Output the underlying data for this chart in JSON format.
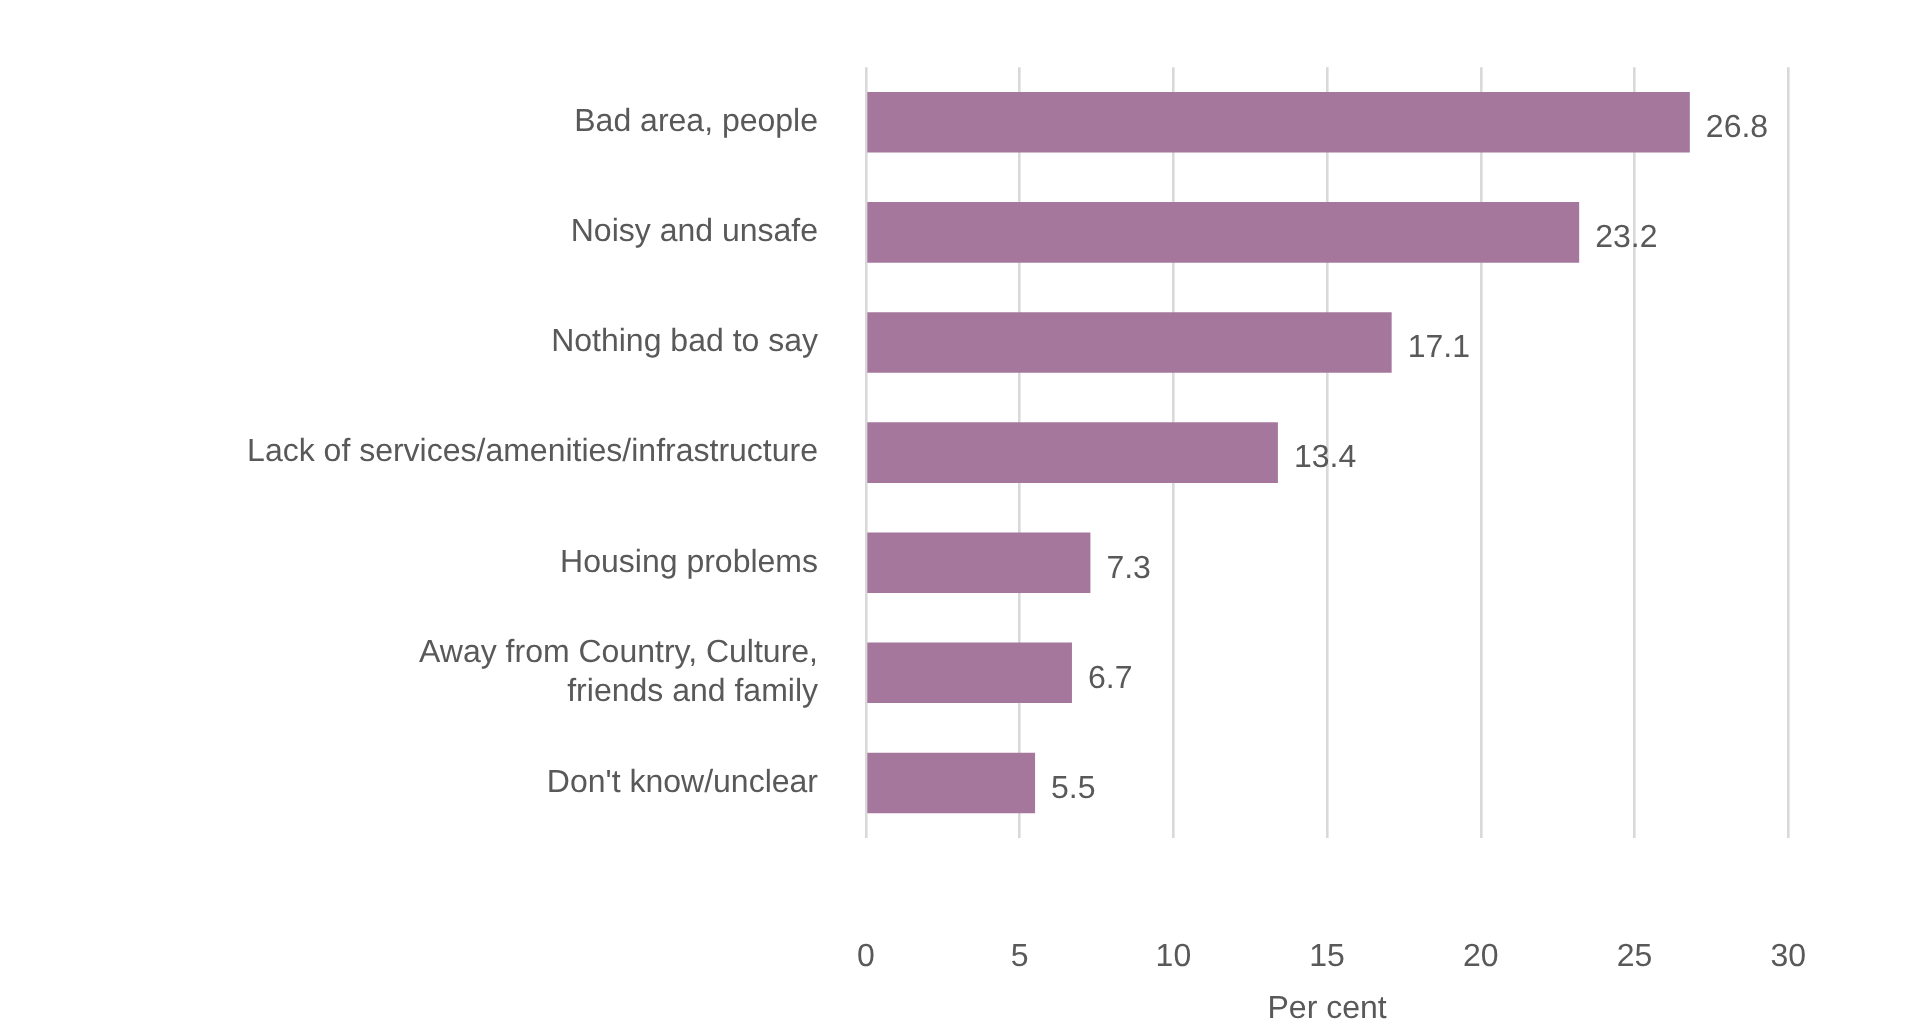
{
  "chart_data": {
    "type": "bar",
    "orientation": "horizontal",
    "categories": [
      "Bad area, people",
      "Noisy and unsafe",
      "Nothing bad to say",
      "Lack of services/amenities/infrastructure",
      "Housing problems",
      "Away from Country, Culture,\nfriends and family",
      "Don't know/unclear"
    ],
    "values": [
      26.8,
      23.2,
      17.1,
      13.4,
      7.3,
      6.7,
      5.5
    ],
    "color": "#a6779d",
    "xlim": [
      0,
      30
    ],
    "xticks": [
      0,
      5,
      10,
      15,
      20,
      25,
      30
    ],
    "xlabel": "Per cent",
    "grid": "x",
    "data_labels": true,
    "legend": false
  }
}
